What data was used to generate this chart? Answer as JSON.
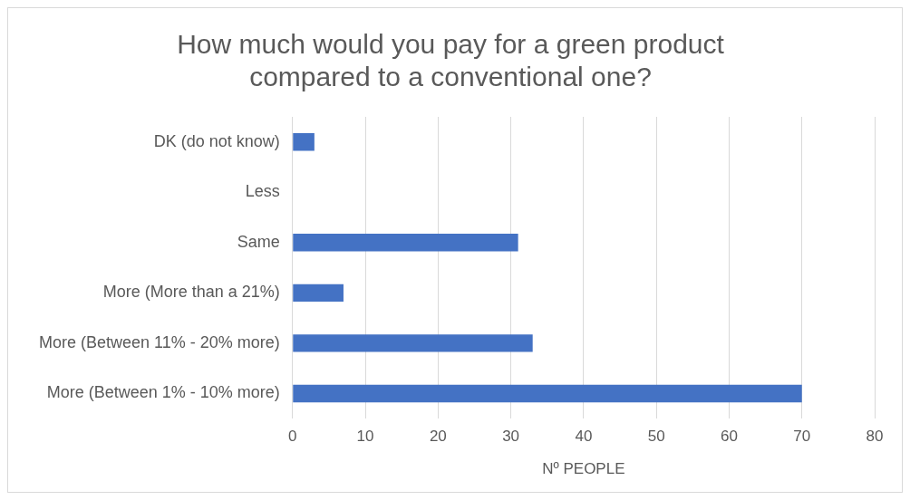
{
  "chart_data": {
    "type": "bar",
    "orientation": "horizontal",
    "title": "How much would you pay for a green product\ncompared to a conventional one?",
    "xlabel": "Nº PEOPLE",
    "categories": [
      "DK (do not know)",
      "Less",
      "Same",
      "More (More than a 21%)",
      "More (Between 11% - 20% more)",
      "More (Between 1% - 10% more)"
    ],
    "values": [
      3,
      0,
      31,
      7,
      33,
      70
    ],
    "color": "#4472c4",
    "xlim": [
      0,
      80
    ],
    "xticks": [
      0,
      10,
      20,
      30,
      40,
      50,
      60,
      70,
      80
    ],
    "grid": "x",
    "legend": false
  }
}
